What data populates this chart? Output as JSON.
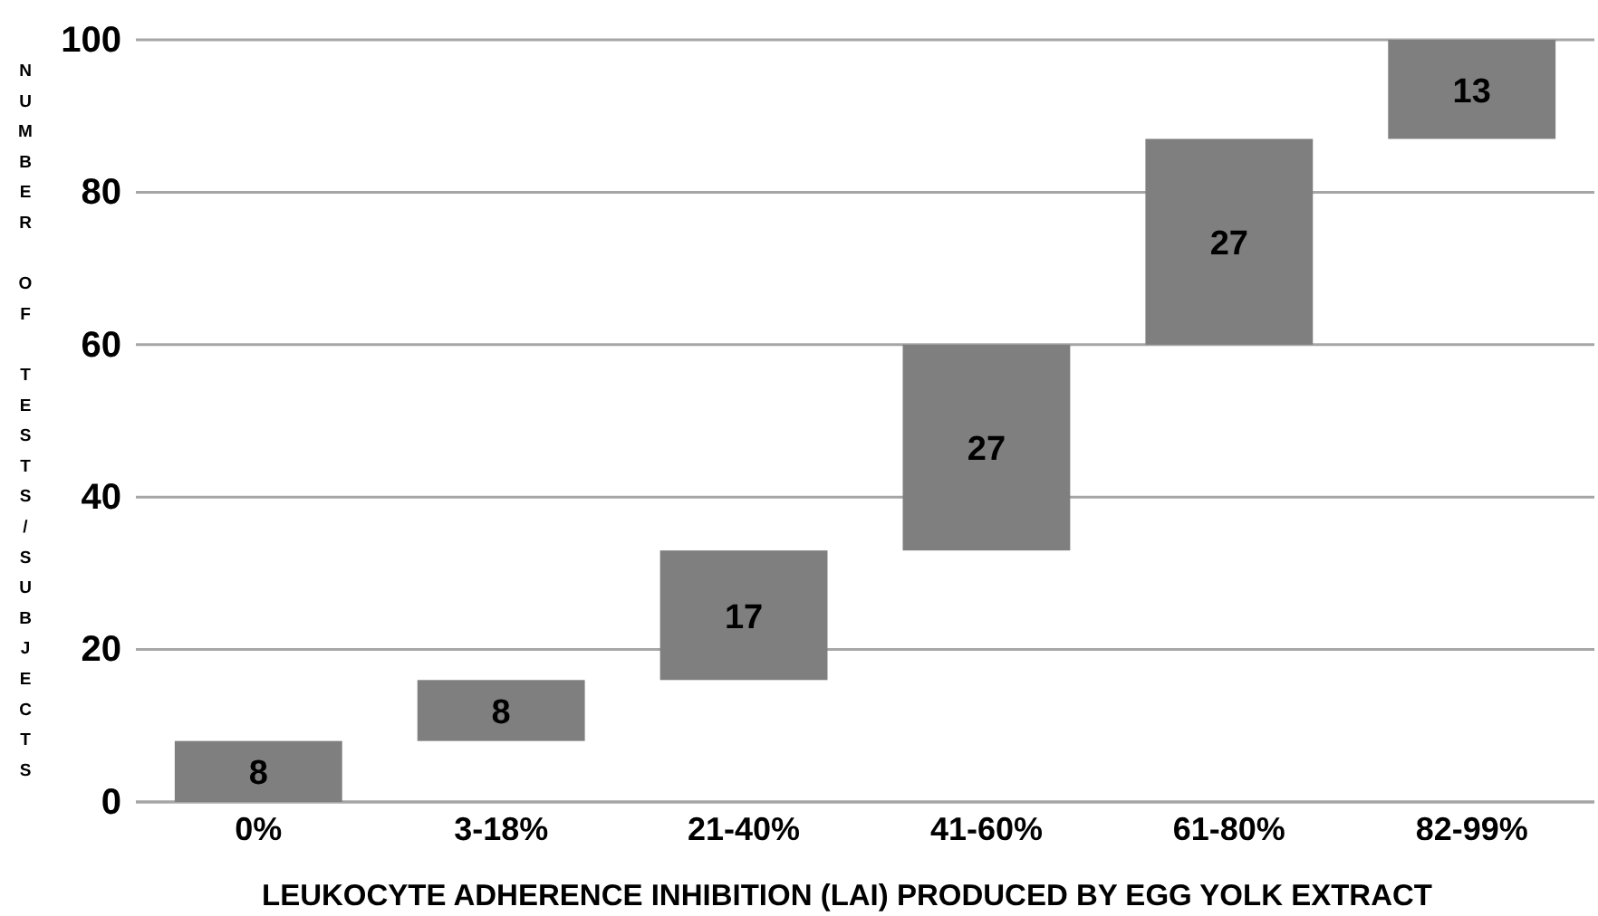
{
  "chart_data": {
    "type": "bar",
    "xlabel": "LEUKOCYTE ADHERENCE INHIBITION (LAI) PRODUCED BY EGG YOLK EXTRACT",
    "ylabel": "NUMBER OF TESTS/SUBJECTS",
    "categories": [
      "0%",
      "3-18%",
      "21-40%",
      "41-60%",
      "61-80%",
      "82-99%"
    ],
    "values": [
      8,
      8,
      17,
      27,
      27,
      13
    ],
    "base": [
      0,
      8,
      16,
      33,
      60,
      87
    ],
    "color": "#7f7f7f",
    "ylim": [
      0,
      100
    ],
    "yticks": [
      0,
      20,
      40,
      60,
      80,
      100
    ],
    "grid": "y",
    "data_labels": true
  }
}
